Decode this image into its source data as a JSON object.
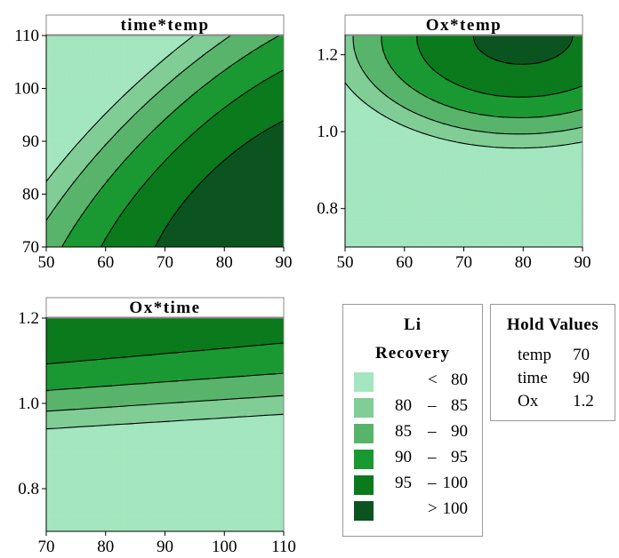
{
  "colors": {
    "band_lt80": "#a3e6bf",
    "band_80_85": "#80cd96",
    "band_85_90": "#58b46a",
    "band_90_95": "#1a9932",
    "band_95_100": "#0a7a1c",
    "band_gt100": "#0b5420",
    "contour": "#000000",
    "header_bg": "#ffffff"
  },
  "chart_data": [
    {
      "type": "contour",
      "title": "time*temp",
      "x_ticks": [
        "50",
        "60",
        "70",
        "80",
        "90"
      ],
      "y_ticks": [
        "70",
        "80",
        "90",
        "100",
        "110"
      ],
      "xlim": [
        50,
        90
      ],
      "ylim": [
        70,
        110
      ],
      "contour_levels": [
        80,
        85,
        90,
        95,
        100
      ]
    },
    {
      "type": "contour",
      "title": "Ox*temp",
      "x_ticks": [
        "50",
        "60",
        "70",
        "80",
        "90"
      ],
      "y_ticks": [
        "0.8",
        "1.0",
        "1.2"
      ],
      "xlim": [
        50,
        90
      ],
      "ylim": [
        0.7,
        1.25
      ],
      "contour_levels": [
        80,
        85,
        90,
        95,
        100
      ]
    },
    {
      "type": "contour",
      "title": "Ox*time",
      "x_ticks": [
        "70",
        "80",
        "90",
        "100",
        "110"
      ],
      "y_ticks": [
        "0.8",
        "1.0",
        "1.2"
      ],
      "xlim": [
        70,
        110
      ],
      "ylim": [
        0.7,
        1.2
      ],
      "contour_levels": [
        80,
        85,
        90,
        95,
        100
      ]
    }
  ],
  "legend": {
    "title_line1": "Li",
    "title_line2": "Recovery",
    "rows": [
      {
        "lo": "",
        "sep": "<",
        "hi": "80"
      },
      {
        "lo": "80",
        "sep": "–",
        "hi": "85"
      },
      {
        "lo": "85",
        "sep": "–",
        "hi": "90"
      },
      {
        "lo": "90",
        "sep": "–",
        "hi": "95"
      },
      {
        "lo": "95",
        "sep": "–",
        "hi": "100"
      },
      {
        "lo": "",
        "sep": ">",
        "hi": "100"
      }
    ]
  },
  "hold_values": {
    "title": "Hold Values",
    "rows": [
      {
        "name": "temp",
        "value": "70"
      },
      {
        "name": "time",
        "value": "90"
      },
      {
        "name": "Ox",
        "value": "1.2"
      }
    ]
  }
}
